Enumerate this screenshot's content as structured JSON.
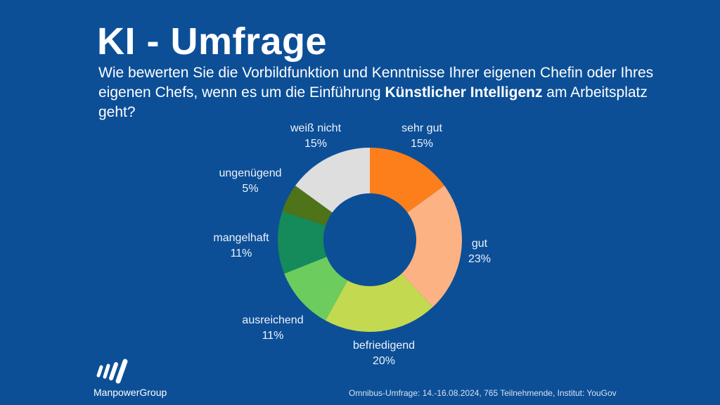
{
  "header": {
    "title": "KI - Umfrage",
    "subtitle_part1": "Wie bewerten Sie die Vorbildfunktion und Kenntnisse Ihrer eigenen Chefin oder Ihres eigenen Chefs, wenn es um die Einführung ",
    "subtitle_bold": "Künstlicher Intelligenz",
    "subtitle_part2": " am Arbeitsplatz geht?"
  },
  "chart_data": {
    "type": "pie",
    "donut": true,
    "title": "KI - Umfrage",
    "unit": "%",
    "slices": [
      {
        "label": "sehr gut",
        "value": 15,
        "value_label": "15%",
        "color": "#fd7f1c"
      },
      {
        "label": "gut",
        "value": 23,
        "value_label": "23%",
        "color": "#fdb283"
      },
      {
        "label": "befriedigend",
        "value": 20,
        "value_label": "20%",
        "color": "#c3d94f"
      },
      {
        "label": "ausreichend",
        "value": 11,
        "value_label": "11%",
        "color": "#6ccd5e"
      },
      {
        "label": "mangelhaft",
        "value": 11,
        "value_label": "11%",
        "color": "#158a5a"
      },
      {
        "label": "ungenügend",
        "value": 5,
        "value_label": "5%",
        "color": "#4e7318"
      },
      {
        "label": "weiß nicht",
        "value": 15,
        "value_label": "15%",
        "color": "#dedede"
      }
    ]
  },
  "footer": {
    "brand": "ManpowerGroup",
    "source": "Omnibus-Umfrage: 14.-16.08.2024, 765 Teilnehmende, Institut: YouGov"
  }
}
